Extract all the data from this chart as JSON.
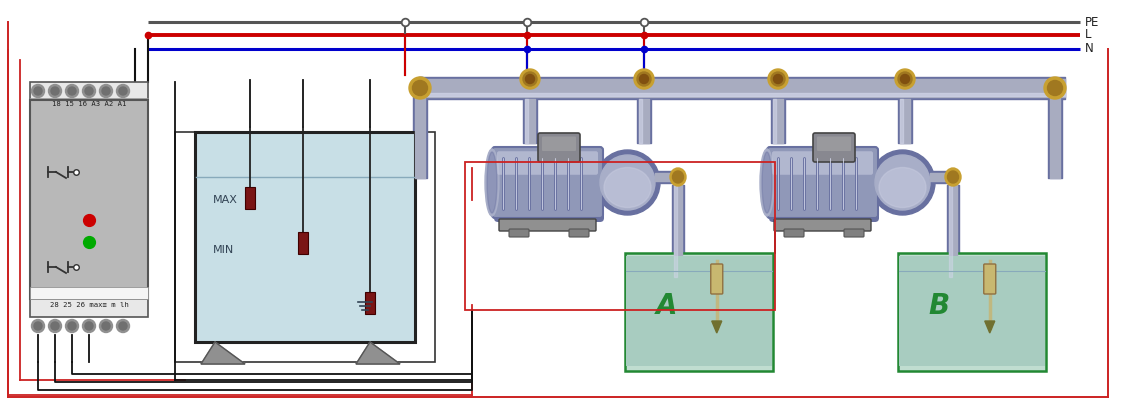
{
  "bg_color": "#ffffff",
  "wire_pe_color": "#555555",
  "wire_l_color": "#cc0000",
  "wire_n_color": "#0000cc",
  "wire_black": "#111111",
  "wire_red_thin": "#cc2222",
  "tank_fill_color": "#c8dfe6",
  "tank_fill_light": "#d8ecf2",
  "tank_outline_color": "#222222",
  "relay_body_color": "#b8b8b8",
  "relay_outline_color": "#555555",
  "sensor_color": "#7a1515",
  "pump_main_color": "#9098b8",
  "pump_light_color": "#c8cce0",
  "pump_dark_color": "#6870a0",
  "pump_mid_color": "#a8aec8",
  "pipe_color": "#a8acc0",
  "pipe_light": "#d0d4e8",
  "pipe_dark": "#6870a0",
  "fitting_color": "#c8a030",
  "fitting_dark": "#a07820",
  "tank_a_fill": "#c0ddd0",
  "tank_a_water": "#a8ccc0",
  "tank_border": "#228833",
  "label_a": "A",
  "label_b": "B",
  "label_max": "MAX",
  "label_min": "MIN",
  "label_pe": "PE",
  "label_l": "L",
  "label_n": "N",
  "relay_top_label": "18 15 16 A3 A2 A1",
  "relay_bot_label": "28 25 26 max≡ m lh",
  "figsize": [
    11.22,
    4.04
  ],
  "dpi": 100
}
